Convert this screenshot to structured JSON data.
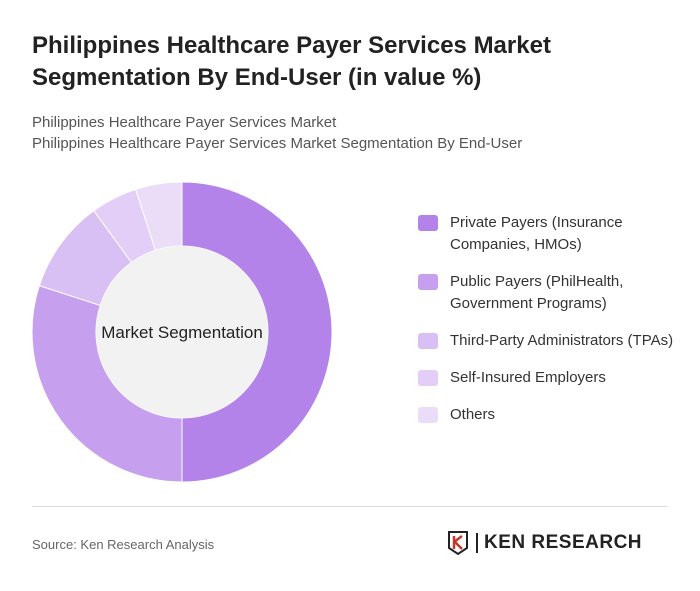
{
  "title": "Philippines Healthcare Payer Services Market Segmentation By End-User (in value %)",
  "subtitle1": "Philippines Healthcare Payer Services Market",
  "subtitle2": "Philippines Healthcare Payer Services Market Segmentation By End-User",
  "source": "Source: Ken Research Analysis",
  "logo_text": "KEN RESEARCH",
  "chart_data": {
    "type": "pie",
    "donut": true,
    "center_label": "Market Segmentation",
    "legend_placement": "right",
    "categories": [
      "Private Payers (Insurance Companies, HMOs)",
      "Public Payers (PhilHealth, Government Programs)",
      "Third-Party Administrators (TPAs)",
      "Self-Insured Employers",
      "Others"
    ],
    "values": [
      50,
      30,
      10,
      5,
      5
    ],
    "colors": [
      "#b383ea",
      "#c6a0ef",
      "#d9c0f4",
      "#e2cef6",
      "#ebdcf8"
    ]
  }
}
